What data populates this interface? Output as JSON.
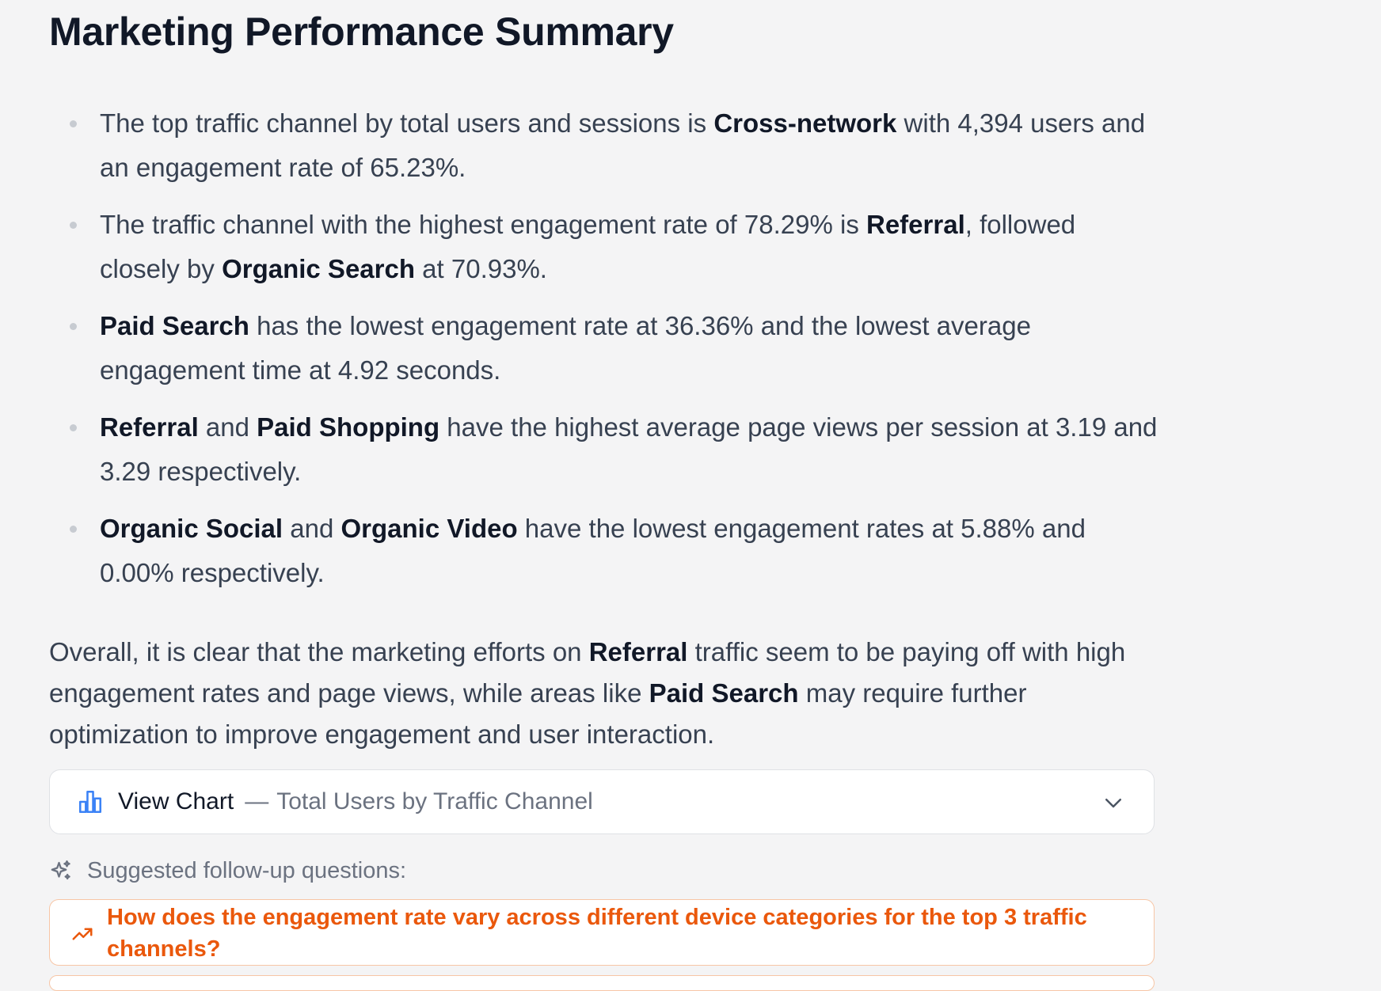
{
  "page": {
    "title": "Marketing Performance Summary"
  },
  "bullets": [
    {
      "parts": [
        {
          "t": "The top traffic channel by total users and sessions is "
        },
        {
          "t": "Cross-network",
          "b": true
        },
        {
          "t": " with 4,394 users and an engagement rate of 65.23%."
        }
      ]
    },
    {
      "parts": [
        {
          "t": "The traffic channel with the highest engagement rate of 78.29% is "
        },
        {
          "t": "Referral",
          "b": true
        },
        {
          "t": ", followed closely by "
        },
        {
          "t": "Organic Search",
          "b": true
        },
        {
          "t": " at 70.93%."
        }
      ]
    },
    {
      "parts": [
        {
          "t": "Paid Search",
          "b": true
        },
        {
          "t": " has the lowest engagement rate at 36.36% and the lowest average engagement time at 4.92 seconds."
        }
      ]
    },
    {
      "parts": [
        {
          "t": "Referral",
          "b": true
        },
        {
          "t": " and "
        },
        {
          "t": "Paid Shopping",
          "b": true
        },
        {
          "t": " have the highest average page views per session at 3.19 and 3.29 respectively."
        }
      ]
    },
    {
      "parts": [
        {
          "t": "Organic Social",
          "b": true
        },
        {
          "t": " and "
        },
        {
          "t": "Organic Video",
          "b": true
        },
        {
          "t": " have the lowest engagement rates at 5.88% and 0.00% respectively."
        }
      ]
    }
  ],
  "summary": {
    "parts": [
      {
        "t": "Overall, it is clear that the marketing efforts on "
      },
      {
        "t": "Referral",
        "b": true
      },
      {
        "t": " traffic seem to be paying off with high engagement rates and page views, while areas like "
      },
      {
        "t": "Paid Search",
        "b": true
      },
      {
        "t": " may require further optimization to improve engagement and user interaction."
      }
    ]
  },
  "chart_toggle": {
    "label": "View Chart",
    "separator": "—",
    "chart_title": "Total Users by Traffic Channel",
    "icon": "bar-chart-icon",
    "expand_icon": "chevron-down-icon"
  },
  "suggestions": {
    "heading": "Suggested follow-up questions:",
    "icon": "sparkle-icon",
    "items": [
      {
        "text": "How does the engagement rate vary across different device categories for the top 3 traffic channels?",
        "icon": "trending-up-icon"
      }
    ]
  },
  "colors": {
    "background": "#f4f4f5",
    "text": "#374151",
    "heading": "#111827",
    "accent_blue": "#3b82f6",
    "accent_orange": "#ea580c",
    "followup_border": "#f7c6a6",
    "muted": "#6b7280"
  }
}
